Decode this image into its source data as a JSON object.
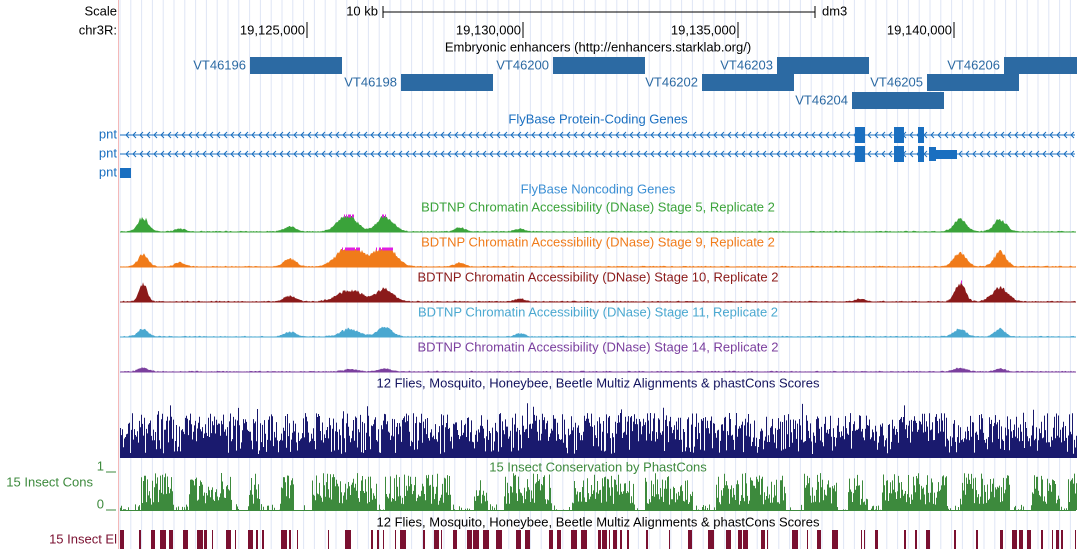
{
  "ruler": {
    "scale_label": "Scale",
    "scale_bar": "10 kb",
    "assembly": "dm3",
    "chrom": "chr3R:",
    "ticks": [
      "19,125,000",
      "19,130,000",
      "19,135,000",
      "19,140,000"
    ]
  },
  "tracks": {
    "enhancers": {
      "title": "Embryonic enhancers (http://enhancers.starklab.org/)",
      "items": [
        "VT46196",
        "VT46198",
        "VT46200",
        "VT46202",
        "VT46203",
        "VT46204",
        "VT46205",
        "VT46206"
      ]
    },
    "genes": {
      "title": "FlyBase Protein-Coding Genes",
      "items": [
        "pnt",
        "pnt",
        "pnt"
      ]
    },
    "noncoding": {
      "title": "FlyBase Noncoding Genes"
    },
    "dnase": [
      {
        "title": "BDTNP Chromatin Accessibility (DNase) Stage 5, Replicate 2"
      },
      {
        "title": "BDTNP Chromatin Accessibility (DNase) Stage 9, Replicate 2"
      },
      {
        "title": "BDTNP Chromatin Accessibility (DNase) Stage 10, Replicate 2"
      },
      {
        "title": "BDTNP Chromatin Accessibility (DNase) Stage 11, Replicate 2"
      },
      {
        "title": "BDTNP Chromatin Accessibility (DNase) Stage 14, Replicate 2"
      }
    ],
    "multiz": {
      "title": "12 Flies, Mosquito, Honeybee, Beetle Multiz Alignments & phastCons Scores"
    },
    "phastcons": {
      "label": "15 Insect Cons",
      "title": "15 Insect Conservation by PhastCons",
      "max": 1,
      "min": 0
    },
    "elements": {
      "label": "15 Insect El",
      "title": "12 Flies, Mosquito, Honeybee, Beetle Multiz Alignments & phastCons Scores"
    }
  }
}
